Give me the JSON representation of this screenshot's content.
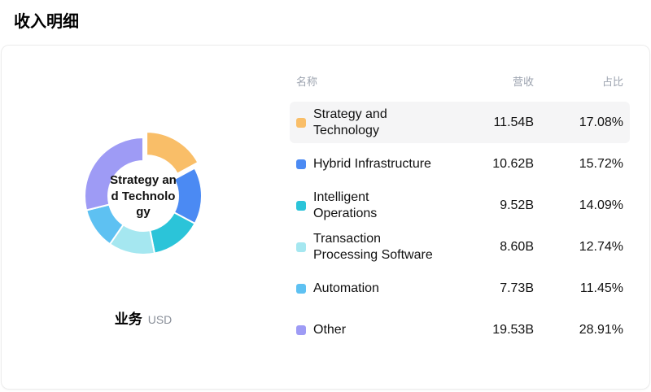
{
  "page_title": "收入明细",
  "footer": {
    "label": "业务",
    "unit": "USD"
  },
  "table": {
    "headers": {
      "name": "名称",
      "revenue": "营收",
      "share": "占比"
    }
  },
  "chart_data": {
    "type": "pie",
    "donut": true,
    "title": "收入明细",
    "unit": "USD",
    "legend_position": "right-table",
    "selected_index": 0,
    "center_label": "Strategy and Technology",
    "series": [
      {
        "name": "Strategy and Technology",
        "revenue": "11.54B",
        "value": 17.08,
        "share": "17.08%",
        "color": "#F9BE68"
      },
      {
        "name": "Hybrid Infrastructure",
        "revenue": "10.62B",
        "value": 15.72,
        "share": "15.72%",
        "color": "#4B8AF3"
      },
      {
        "name": "Intelligent Operations",
        "revenue": "9.52B",
        "value": 14.09,
        "share": "14.09%",
        "color": "#2BC4D9"
      },
      {
        "name": "Transaction Processing Software",
        "revenue": "8.60B",
        "value": 12.74,
        "share": "12.74%",
        "color": "#A5E7F0"
      },
      {
        "name": "Automation",
        "revenue": "7.73B",
        "value": 11.45,
        "share": "11.45%",
        "color": "#5EC1F2"
      },
      {
        "name": "Other",
        "revenue": "19.53B",
        "value": 28.91,
        "share": "28.91%",
        "color": "#9E9BF5"
      }
    ]
  }
}
